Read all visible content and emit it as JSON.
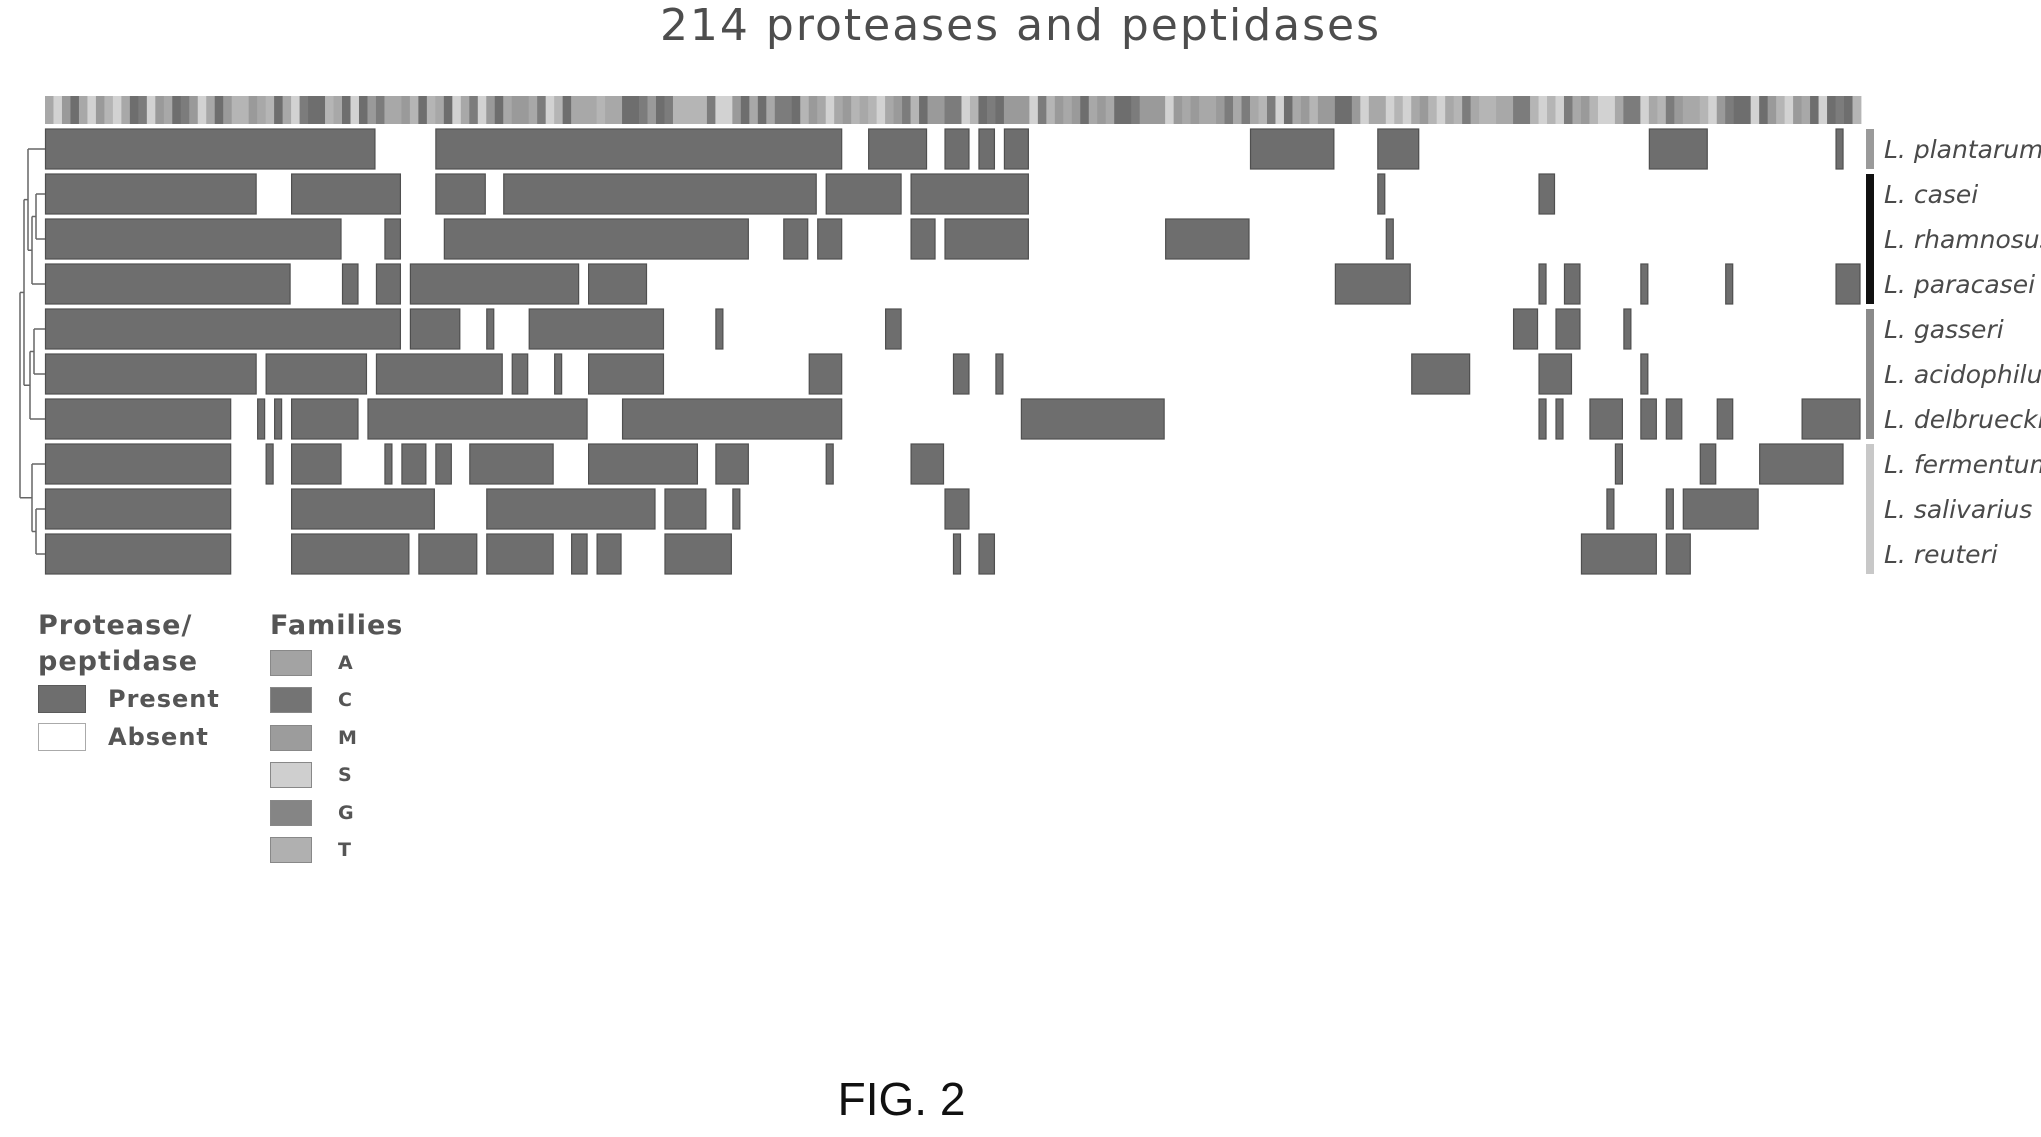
{
  "chart_data": {
    "type": "heatmap",
    "title": "214 proteases and peptidases",
    "column_count": 214,
    "species": [
      {
        "name": "L. plantarum",
        "present": [
          [
            0,
            39
          ],
          [
            46,
            94
          ],
          [
            97,
            104
          ],
          [
            106,
            109
          ],
          [
            110,
            112
          ],
          [
            113,
            116
          ],
          [
            142,
            152
          ],
          [
            157,
            162
          ],
          [
            189,
            196
          ],
          [
            211,
            212
          ]
        ]
      },
      {
        "name": "L. casei",
        "present": [
          [
            0,
            25
          ],
          [
            29,
            42
          ],
          [
            46,
            52
          ],
          [
            54,
            91
          ],
          [
            92,
            101
          ],
          [
            102,
            116
          ],
          [
            157,
            158
          ],
          [
            176,
            178
          ]
        ]
      },
      {
        "name": "L. rhamnosus",
        "present": [
          [
            0,
            35
          ],
          [
            40,
            42
          ],
          [
            47,
            83
          ],
          [
            87,
            90
          ],
          [
            91,
            94
          ],
          [
            102,
            105
          ],
          [
            106,
            116
          ],
          [
            132,
            142
          ],
          [
            158,
            159
          ]
        ]
      },
      {
        "name": "L. paracasei",
        "present": [
          [
            0,
            29
          ],
          [
            35,
            37
          ],
          [
            39,
            42
          ],
          [
            43,
            63
          ],
          [
            64,
            71
          ],
          [
            152,
            161
          ],
          [
            176,
            177
          ],
          [
            179,
            181
          ],
          [
            188,
            189
          ],
          [
            198,
            199
          ],
          [
            211,
            214
          ]
        ]
      },
      {
        "name": "L. gasseri",
        "present": [
          [
            0,
            42
          ],
          [
            43,
            49
          ],
          [
            52,
            53
          ],
          [
            57,
            73
          ],
          [
            79,
            80
          ],
          [
            99,
            101
          ],
          [
            173,
            176
          ],
          [
            178,
            181
          ],
          [
            186,
            187
          ]
        ]
      },
      {
        "name": "L. acidophilus",
        "present": [
          [
            0,
            25
          ],
          [
            26,
            38
          ],
          [
            39,
            54
          ],
          [
            55,
            57
          ],
          [
            60,
            61
          ],
          [
            64,
            73
          ],
          [
            90,
            94
          ],
          [
            107,
            109
          ],
          [
            112,
            113
          ],
          [
            161,
            168
          ],
          [
            176,
            180
          ],
          [
            188,
            189
          ]
        ]
      },
      {
        "name": "L. delbrueckii",
        "present": [
          [
            0,
            22
          ],
          [
            25,
            26
          ],
          [
            27,
            28
          ],
          [
            29,
            37
          ],
          [
            38,
            64
          ],
          [
            68,
            94
          ],
          [
            115,
            132
          ],
          [
            176,
            177
          ],
          [
            178,
            179
          ],
          [
            182,
            186
          ],
          [
            188,
            190
          ],
          [
            191,
            193
          ],
          [
            197,
            199
          ],
          [
            207,
            214
          ]
        ]
      },
      {
        "name": "L. fermentum",
        "present": [
          [
            0,
            22
          ],
          [
            26,
            27
          ],
          [
            29,
            35
          ],
          [
            40,
            41
          ],
          [
            42,
            45
          ],
          [
            46,
            48
          ],
          [
            50,
            60
          ],
          [
            64,
            77
          ],
          [
            79,
            83
          ],
          [
            92,
            93
          ],
          [
            102,
            106
          ],
          [
            185,
            186
          ],
          [
            195,
            197
          ],
          [
            202,
            212
          ]
        ]
      },
      {
        "name": "L. salivarius",
        "present": [
          [
            0,
            22
          ],
          [
            29,
            46
          ],
          [
            52,
            72
          ],
          [
            73,
            78
          ],
          [
            81,
            82
          ],
          [
            106,
            109
          ],
          [
            184,
            185
          ],
          [
            191,
            192
          ],
          [
            193,
            202
          ]
        ]
      },
      {
        "name": "L. reuteri",
        "present": [
          [
            0,
            22
          ],
          [
            29,
            43
          ],
          [
            44,
            51
          ],
          [
            52,
            60
          ],
          [
            62,
            64
          ],
          [
            65,
            68
          ],
          [
            73,
            81
          ],
          [
            107,
            108
          ],
          [
            110,
            112
          ],
          [
            181,
            190
          ],
          [
            191,
            194
          ]
        ]
      }
    ],
    "family_strip_colors": [
      "#9a9a9a",
      "#6e6e6e",
      "#a8a8a8",
      "#d2d2d2",
      "#7c7c7c",
      "#b5b5b5"
    ],
    "group_bars": [
      {
        "rows": [
          0
        ],
        "color": "#9a9a9a"
      },
      {
        "rows": [
          1,
          2,
          3
        ],
        "color": "#111111"
      },
      {
        "rows": [
          4,
          5,
          6
        ],
        "color": "#8a8a8a"
      },
      {
        "rows": [
          7,
          8,
          9
        ],
        "color": "#c8c8c8"
      }
    ]
  },
  "legend": {
    "presence_title_line1": "Protease/",
    "presence_title_line2": "peptidase",
    "present_label": "Present",
    "absent_label": "Absent",
    "families_title": "Families",
    "families": [
      {
        "label": "A",
        "color": "#a3a3a3"
      },
      {
        "label": "C",
        "color": "#747474"
      },
      {
        "label": "M",
        "color": "#9c9c9c"
      },
      {
        "label": "S",
        "color": "#cfcfcf"
      },
      {
        "label": "G",
        "color": "#858585"
      },
      {
        "label": "T",
        "color": "#b0b0b0"
      }
    ]
  },
  "caption": "FIG. 2"
}
